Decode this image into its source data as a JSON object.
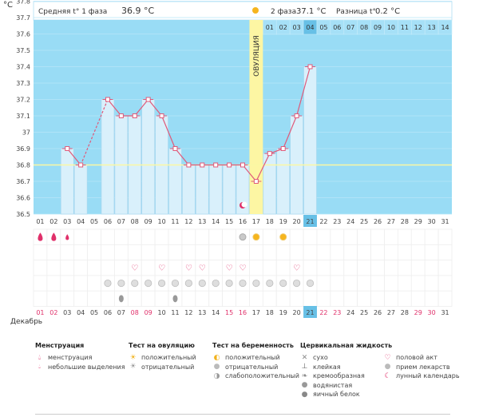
{
  "header": {
    "unit": "°C",
    "phase1_label": "Средняя t° 1 фаза",
    "phase1_value": "36.9 °C",
    "phase2_label": "2 фаза",
    "phase2_value": "37.1 °C",
    "diff_label": "Разница t°",
    "diff_value": "0.2 °C"
  },
  "ovulation_label": "ОВУЛЯЦИЯ",
  "ovulation_day": 17,
  "today_day": 21,
  "cycle_day_labels": [
    "01",
    "02",
    "03",
    "04",
    "05",
    "06",
    "07",
    "08",
    "09",
    "10",
    "11",
    "12",
    "13",
    "14"
  ],
  "cycle_day_start": 18,
  "month_label": "Декабрь",
  "chart_data": {
    "type": "line",
    "y_ticks": [
      "36.5",
      "36.6",
      "36.7",
      "36.8",
      "36.9",
      "37",
      "37.1",
      "37.2",
      "37.3",
      "37.4",
      "37.5",
      "37.6",
      "37.7",
      "37.8"
    ],
    "ylim": [
      36.5,
      37.85
    ],
    "coverline": 36.8,
    "x": [
      "01",
      "02",
      "03",
      "04",
      "05",
      "06",
      "07",
      "08",
      "09",
      "10",
      "11",
      "12",
      "13",
      "14",
      "15",
      "16",
      "17",
      "18",
      "19",
      "20",
      "21",
      "22",
      "23",
      "24",
      "25",
      "26",
      "27",
      "28",
      "29",
      "30",
      "31"
    ],
    "temperatures": [
      null,
      null,
      36.9,
      36.8,
      null,
      37.2,
      37.1,
      37.1,
      37.2,
      37.1,
      36.9,
      36.8,
      36.8,
      36.8,
      36.8,
      36.8,
      36.7,
      36.87,
      36.9,
      37.1,
      37.4,
      null,
      null,
      null,
      null,
      null,
      null,
      null,
      null,
      null,
      null
    ],
    "dashed_segments": [
      [
        4,
        6
      ]
    ],
    "series_color": "#e05a7a"
  },
  "rows": {
    "menstruation": {
      "1": "big",
      "2": "big",
      "3": "small"
    },
    "ovulation_test": {
      "16": "negative",
      "17": "positive",
      "19": "positive"
    },
    "intercourse": [
      8,
      10,
      12,
      13,
      15,
      16,
      20
    ],
    "pregnancy_test": [
      6,
      7,
      8,
      9,
      10,
      11,
      12,
      13,
      14,
      15,
      16,
      17,
      18,
      19,
      20,
      21
    ],
    "cervical_fluid": {
      "7": "egg_white",
      "11": "egg_white"
    },
    "moon_day": 16
  },
  "bottom_days_red": [
    1,
    2,
    8,
    9,
    15,
    16,
    22,
    23,
    29,
    30
  ],
  "legend": {
    "menstruation": {
      "title": "Менструация",
      "items": [
        "менструация",
        "небольшие выделения"
      ]
    },
    "ovulation_test": {
      "title": "Тест на овуляцию",
      "items": [
        "положительный",
        "отрицательный"
      ]
    },
    "pregnancy_test": {
      "title": "Тест на беременность",
      "items": [
        "положительный",
        "отрицательный",
        "слабоположительный"
      ]
    },
    "cervical": {
      "title": "Цервикальная жидкость",
      "items": [
        "сухо",
        "клейкая",
        "кремообразная",
        "водянистая",
        "яичный белок"
      ]
    },
    "other": {
      "items": [
        "половой акт",
        "прием лекарств",
        "лунный календарь"
      ]
    }
  },
  "colors": {
    "sky": "#99dcf5",
    "bar": "#d9f0fb",
    "bar_stroke": "#a9d6ee",
    "ovulation": "#fdf6a3",
    "today": "#67c0e6",
    "red": "#e0306a",
    "coverline": "#fbf8a3"
  }
}
